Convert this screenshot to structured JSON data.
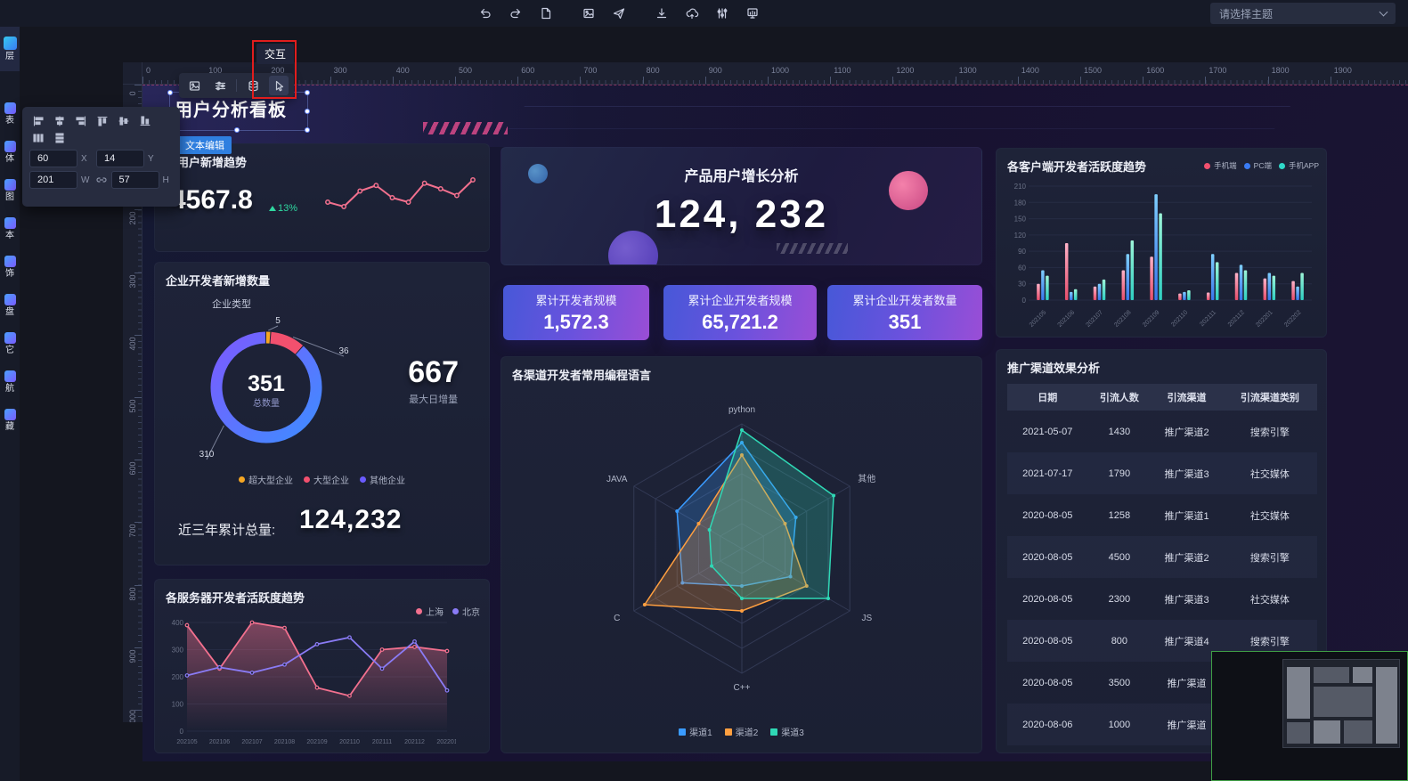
{
  "window": {
    "theme_select_placeholder": "请选择主题"
  },
  "left_nav": {
    "items": [
      "层",
      "表",
      "体",
      "图",
      "本",
      "饰",
      "盘",
      "它",
      "航",
      "藏"
    ]
  },
  "rulers": {
    "top": [
      "0",
      "100",
      "200",
      "300",
      "400",
      "500",
      "600",
      "700",
      "800",
      "900",
      "1000",
      "1100",
      "1200",
      "1300",
      "1400",
      "1500",
      "1600",
      "1700",
      "1800",
      "1900"
    ],
    "left": [
      "0",
      "100",
      "200",
      "300",
      "400",
      "500",
      "600",
      "700",
      "800",
      "900",
      "1000"
    ]
  },
  "properties_panel": {
    "x_value": "60",
    "x_label": "X",
    "y_value": "14",
    "y_label": "Y",
    "w_value": "201",
    "w_label": "W",
    "h_value": "57",
    "h_label": "H"
  },
  "context_toolbar": {
    "tooltip": "交互"
  },
  "dashboard": {
    "title": "用户分析看板",
    "selected_tag": "文本编辑",
    "user_trend": {
      "title": "体用户新增趋势",
      "value": "4567.8",
      "delta": "13%"
    },
    "growth": {
      "title": "产品用户增长分析",
      "value": "124, 232"
    },
    "stat_cards": [
      {
        "label": "累计开发者规模",
        "value": "1,572.3"
      },
      {
        "label": "累计企业开发者规模",
        "value": "65,721.2"
      },
      {
        "label": "累计企业开发者数量",
        "value": "351"
      }
    ],
    "enterprise": {
      "title": "企业开发者新增数量",
      "subtitle": "企业类型",
      "max_daily_value": "667",
      "max_daily_label": "最大日增量",
      "total_label": "近三年累计总量:",
      "total_value": "124,232"
    },
    "server": {
      "title": "各服务器开发者活跃度趋势"
    },
    "radar": {
      "title": "各渠道开发者常用编程语言"
    },
    "client": {
      "title": "各客户端开发者活跃度趋势"
    },
    "promo": {
      "title": "推广渠道效果分析"
    }
  },
  "chart_data": {
    "user_trend_spark": {
      "type": "line",
      "color": "#f2708e",
      "values": [
        40,
        36,
        50,
        55,
        44,
        40,
        57,
        52,
        46,
        60
      ]
    },
    "enterprise_donut": {
      "type": "pie",
      "labels": [
        "超大型企业",
        "大型企业",
        "其他企业"
      ],
      "values": [
        5,
        36,
        310
      ],
      "colors": [
        "#f5a623",
        "#f2506e",
        "#6a5bff"
      ],
      "center_value": "351",
      "center_label": "总数量",
      "callouts": [
        "5",
        "36",
        "310"
      ]
    },
    "server_activity": {
      "type": "line",
      "categories": [
        "202105",
        "202106",
        "202107",
        "202108",
        "202109",
        "202110",
        "202111",
        "202112",
        "202201"
      ],
      "yticks": [
        0,
        100,
        200,
        300,
        400
      ],
      "ylim": [
        0,
        400
      ],
      "series": [
        {
          "name": "上海",
          "color": "#f2708e",
          "values": [
            390,
            230,
            400,
            380,
            160,
            130,
            300,
            310,
            295
          ]
        },
        {
          "name": "北京",
          "color": "#8a7bf5",
          "values": [
            205,
            235,
            215,
            245,
            320,
            345,
            230,
            330,
            150
          ]
        }
      ]
    },
    "radar_langs": {
      "type": "radar",
      "axes": [
        "python",
        "其他",
        "JS",
        "C++",
        "C",
        "JAVA"
      ],
      "max": 100,
      "series": [
        {
          "name": "渠道1",
          "color": "#3a9bff",
          "values": [
            85,
            50,
            45,
            30,
            55,
            60
          ]
        },
        {
          "name": "渠道2",
          "color": "#ff9f40",
          "values": [
            75,
            40,
            60,
            50,
            90,
            40
          ]
        },
        {
          "name": "渠道3",
          "color": "#2fd8b5",
          "values": [
            95,
            85,
            80,
            40,
            28,
            30
          ]
        }
      ]
    },
    "client_activity": {
      "type": "bar",
      "categories": [
        "202105",
        "202106",
        "202107",
        "202108",
        "202109",
        "202110",
        "202111",
        "202112",
        "202201",
        "202202"
      ],
      "yticks": [
        0,
        30,
        60,
        90,
        120,
        150,
        180,
        210
      ],
      "ylim": [
        0,
        210
      ],
      "series": [
        {
          "name": "手机端",
          "color": "#f2506e",
          "color_top": "#ffb3c8",
          "values": [
            30,
            105,
            25,
            55,
            80,
            12,
            14,
            50,
            40,
            35
          ]
        },
        {
          "name": "PC端",
          "color": "#3a7bf5",
          "color_top": "#7fd0ff",
          "values": [
            55,
            15,
            30,
            85,
            195,
            15,
            85,
            65,
            50,
            25
          ]
        },
        {
          "name": "手机APP",
          "color": "#2fd8c9",
          "color_top": "#9ef5d8",
          "values": [
            45,
            20,
            38,
            110,
            160,
            18,
            70,
            55,
            45,
            50
          ]
        }
      ]
    },
    "promo_table": {
      "type": "table",
      "headers": [
        "日期",
        "引流人数",
        "引流渠道",
        "引流渠道类别"
      ],
      "rows": [
        [
          "2021-05-07",
          "1430",
          "推广渠道2",
          "搜索引擎"
        ],
        [
          "2021-07-17",
          "1790",
          "推广渠道3",
          "社交媒体"
        ],
        [
          "2020-08-05",
          "1258",
          "推广渠道1",
          "社交媒体"
        ],
        [
          "2020-08-05",
          "4500",
          "推广渠道2",
          "搜索引擎"
        ],
        [
          "2020-08-05",
          "2300",
          "推广渠道3",
          "社交媒体"
        ],
        [
          "2020-08-05",
          "800",
          "推广渠道4",
          "搜索引擎"
        ],
        [
          "2020-08-05",
          "3500",
          "推广渠道",
          ""
        ],
        [
          "2020-08-06",
          "1000",
          "推广渠道",
          ""
        ]
      ]
    }
  }
}
